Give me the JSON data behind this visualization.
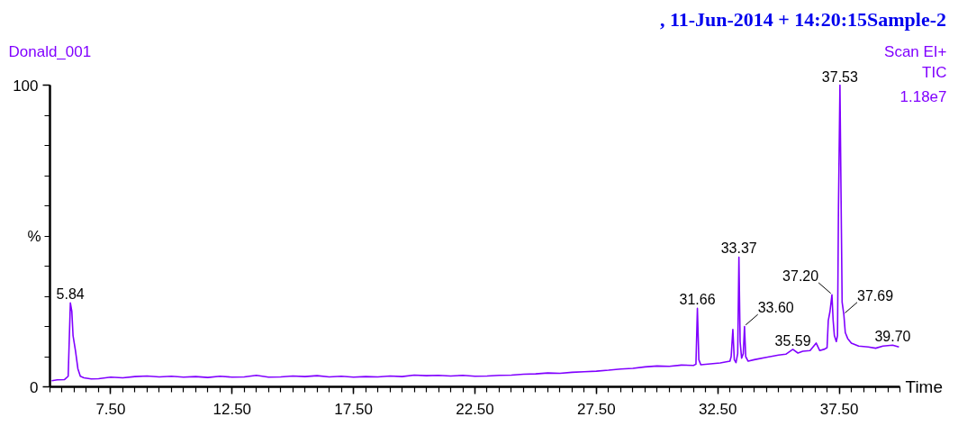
{
  "chart_data": {
    "type": "line",
    "title": ",  11-Jun-2014 + 14:20:15Sample-2",
    "subtitle": "Donald_001",
    "xlabel": "Time",
    "ylabel": "%",
    "xlim": [
      5.0,
      40.0
    ],
    "ylim": [
      0,
      100
    ],
    "xticks": [
      {
        "value": 7.5,
        "label": "7.50"
      },
      {
        "value": 12.5,
        "label": "12.50"
      },
      {
        "value": 17.5,
        "label": "17.50"
      },
      {
        "value": 22.5,
        "label": "22.50"
      },
      {
        "value": 27.5,
        "label": "27.50"
      },
      {
        "value": 32.5,
        "label": "32.50"
      },
      {
        "value": 37.5,
        "label": "37.50"
      }
    ],
    "yticks": [
      0,
      100
    ],
    "grid": false,
    "marker": "none",
    "line_style": "solid",
    "series": [
      {
        "color": "#8000ff",
        "x": [
          5.07,
          5.3,
          5.6,
          5.75,
          5.84,
          5.9,
          5.95,
          6.05,
          6.15,
          6.25,
          6.4,
          6.7,
          7.0,
          7.5,
          8.0,
          8.5,
          9.0,
          9.5,
          10.0,
          10.5,
          11.0,
          11.5,
          12.0,
          12.5,
          13.0,
          13.5,
          14.0,
          14.5,
          15.0,
          15.5,
          16.0,
          16.5,
          17.0,
          17.5,
          18.0,
          18.5,
          19.0,
          19.5,
          20.0,
          20.5,
          21.0,
          21.5,
          22.0,
          22.5,
          23.0,
          23.5,
          24.0,
          24.5,
          25.0,
          25.5,
          26.0,
          26.5,
          27.0,
          27.5,
          28.0,
          28.5,
          29.0,
          29.5,
          30.0,
          30.5,
          31.0,
          31.5,
          31.6,
          31.66,
          31.72,
          31.8,
          32.2,
          32.6,
          33.0,
          33.05,
          33.12,
          33.18,
          33.25,
          33.32,
          33.37,
          33.42,
          33.48,
          33.55,
          33.6,
          33.65,
          33.75,
          34.0,
          34.5,
          35.0,
          35.3,
          35.59,
          35.8,
          36.0,
          36.3,
          36.55,
          36.7,
          36.9,
          37.0,
          37.05,
          37.12,
          37.2,
          37.25,
          37.3,
          37.38,
          37.43,
          37.47,
          37.53,
          37.58,
          37.62,
          37.69,
          37.75,
          37.85,
          38.0,
          38.3,
          38.7,
          39.0,
          39.3,
          39.7,
          39.96
        ],
        "values": [
          2.0,
          2.3,
          2.4,
          3.5,
          27.8,
          25,
          17,
          12,
          6,
          3.5,
          3.0,
          2.6,
          2.7,
          3.2,
          3.0,
          3.4,
          3.6,
          3.3,
          3.5,
          3.2,
          3.4,
          3.1,
          3.5,
          3.2,
          3.3,
          3.8,
          3.2,
          3.3,
          3.6,
          3.4,
          3.7,
          3.3,
          3.5,
          3.2,
          3.4,
          3.3,
          3.6,
          3.4,
          3.9,
          3.7,
          3.8,
          3.6,
          3.8,
          3.5,
          3.6,
          3.8,
          3.9,
          4.2,
          4.3,
          4.6,
          4.5,
          4.8,
          5.0,
          5.2,
          5.5,
          5.9,
          6.1,
          6.6,
          6.9,
          6.8,
          7.2,
          7.1,
          7.5,
          26,
          9,
          7.3,
          7.6,
          7.9,
          8.5,
          10,
          19,
          9,
          8,
          11,
          43,
          15,
          9.5,
          11,
          20,
          10,
          8.5,
          9,
          9.8,
          10.5,
          10.8,
          12.4,
          11.2,
          11.8,
          12,
          14.5,
          12,
          12.5,
          13,
          22,
          25,
          30.5,
          22,
          17,
          15,
          17,
          60,
          100,
          60,
          28,
          24,
          18,
          16,
          14.5,
          13.5,
          13.2,
          12.8,
          13.5,
          13.8,
          13.2
        ]
      }
    ],
    "annotations": [
      "Scan EI+",
      "TIC",
      "1.18e7",
      {
        "text": "5.84",
        "x": 5.84,
        "y": 27.8
      },
      {
        "text": "31.66",
        "x": 31.66,
        "y": 26
      },
      {
        "text": "33.37",
        "x": 33.37,
        "y": 43
      },
      {
        "text": "33.60",
        "x": 33.6,
        "y": 20
      },
      {
        "text": "35.59",
        "x": 35.59,
        "y": 12.4
      },
      {
        "text": "37.20",
        "x": 37.2,
        "y": 30.5
      },
      {
        "text": "37.53",
        "x": 37.53,
        "y": 100
      },
      {
        "text": "37.69",
        "x": 37.69,
        "y": 24
      },
      {
        "text": "39.70",
        "x": 39.7,
        "y": 13.8
      }
    ]
  }
}
